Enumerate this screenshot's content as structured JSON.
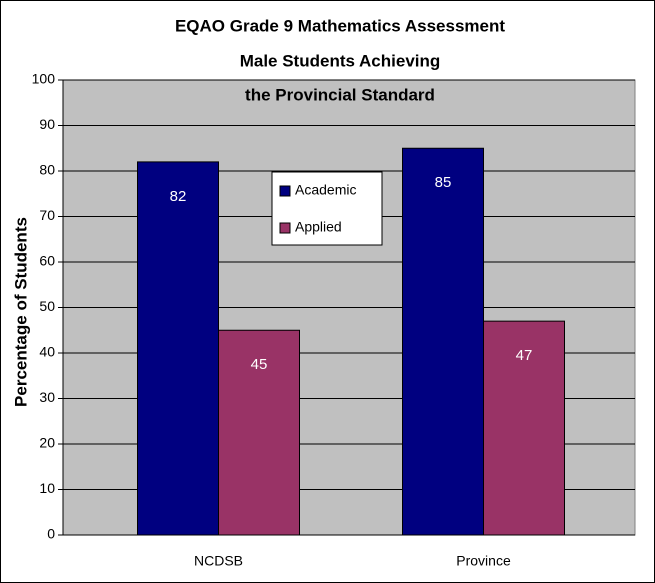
{
  "chart_data": {
    "type": "bar",
    "title": [
      "EQAO Grade 9 Mathematics Assessment",
      "Male Students Achieving",
      "the Provincial Standard"
    ],
    "y_label": "Percentage of Students",
    "categories": [
      "NCDSB",
      "Province"
    ],
    "series": [
      {
        "name": "Academic",
        "color": "#000080",
        "values": [
          82,
          85
        ]
      },
      {
        "name": "Applied",
        "color": "#993366",
        "values": [
          45,
          47
        ]
      }
    ],
    "ylim": [
      0,
      100
    ],
    "yticks": [
      0,
      10,
      20,
      30,
      40,
      50,
      60,
      70,
      80,
      90,
      100
    ],
    "grid": true,
    "legend": "center"
  }
}
